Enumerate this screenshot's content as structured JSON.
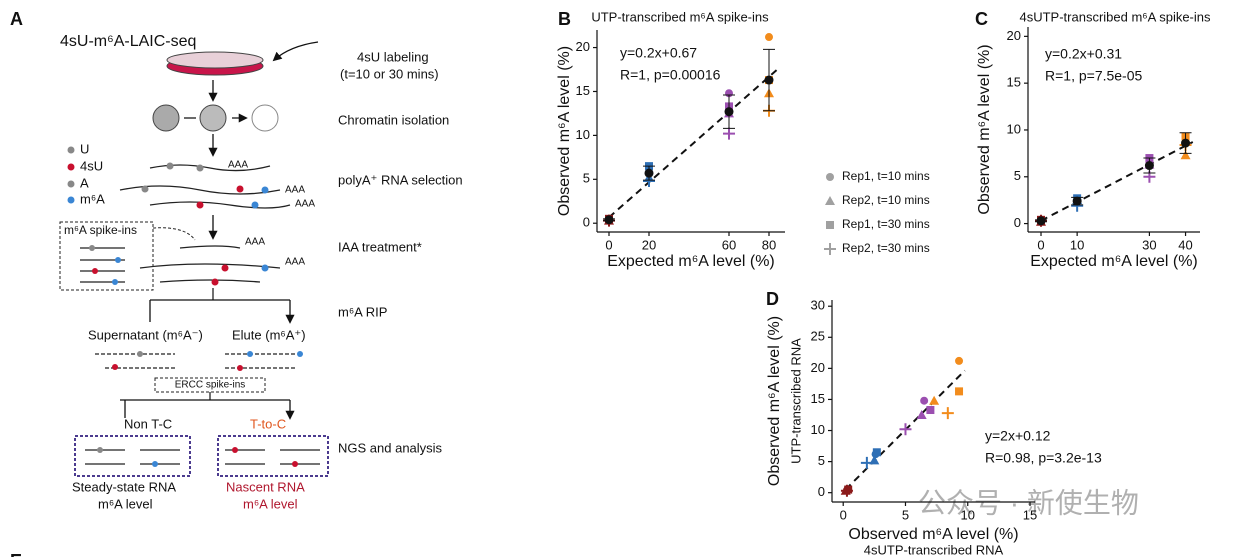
{
  "panel_a": {
    "label": "A",
    "title": "4sU-m⁶A-LAIC-seq",
    "labeling": [
      "4sU labeling",
      "(t=10 or 30 mins)"
    ],
    "steps": [
      "Chromatin isolation",
      "polyA⁺ RNA selection",
      "IAA treatment*",
      "m⁶A RIP",
      "NGS and analysis"
    ],
    "nucleotides": [
      "U",
      "4sU",
      "A",
      "m⁶A"
    ],
    "tail": "AAA",
    "spike_ins": "m⁶A spike-ins",
    "supernatant": "Supernatant (m⁶A⁻)",
    "elute": "Elute (m⁶A⁺)",
    "ercc": "ERCC spike-ins",
    "non_tc": "Non T-C",
    "t_to_c": "T-to-C",
    "steady": [
      "Steady-state RNA",
      "m⁶A level"
    ],
    "nascent": [
      "Nascent RNA",
      "m⁶A level"
    ]
  },
  "panel_e": {
    "label": "E"
  },
  "watermark": "公众号 · 新使生物",
  "chart_data": [
    {
      "type": "scatter",
      "label": "B",
      "title": "UTP-transcribed m⁶A spike-ins",
      "xlabel": [
        "Expected m⁶A level (%)"
      ],
      "ylabel": [
        "Observed m⁶A level (%)"
      ],
      "fit_label": [
        "y=0.2x+0.67",
        "R=1, p=0.00016"
      ],
      "fit": [
        0.2,
        0.67
      ],
      "x": [
        0,
        20,
        60,
        80
      ],
      "point_colors": [
        "#8b1a1a",
        "#2e6fb5",
        "#9b4fb0",
        "#f28c1c"
      ],
      "series": [
        {
          "name": "Rep1, t=10 mins",
          "marker": "circle",
          "values": [
            0.4,
            6.2,
            14.8,
            21.2
          ]
        },
        {
          "name": "Rep2, t=10 mins",
          "marker": "triangle",
          "values": [
            0.3,
            5.2,
            12.5,
            14.8
          ]
        },
        {
          "name": "Rep1, t=30 mins",
          "marker": "square",
          "values": [
            0.5,
            6.5,
            13.3,
            16.3
          ]
        },
        {
          "name": "Rep2, t=30 mins",
          "marker": "plus",
          "values": [
            0.3,
            4.8,
            10.2,
            12.8
          ]
        }
      ],
      "means": [
        0.4,
        5.7,
        12.7,
        16.3
      ],
      "errors": [
        0.1,
        0.8,
        1.9,
        3.5
      ],
      "legend": true,
      "legend_color": "#a0a0a0",
      "xlim": [
        -6,
        88
      ],
      "ylim": [
        -1,
        22
      ],
      "xticks": [
        0,
        20,
        60,
        80
      ],
      "yticks": [
        0,
        5,
        10,
        15,
        20
      ]
    },
    {
      "type": "scatter",
      "label": "C",
      "title": "4sUTP-transcribed m⁶A spike-ins",
      "xlabel": [
        "Expected m⁶A level (%)"
      ],
      "ylabel": [
        "Observed m⁶A level (%)"
      ],
      "fit_label": [
        "y=0.2x+0.31",
        "R=1, p=7.5e-05"
      ],
      "fit": [
        0.2,
        0.31
      ],
      "x": [
        0,
        10,
        30,
        40
      ],
      "point_colors": [
        "#8b1a1a",
        "#2e6fb5",
        "#9b4fb0",
        "#f28c1c"
      ],
      "series": [
        {
          "marker": "circle",
          "values": [
            0.3,
            2.6,
            6.5,
            9.3
          ]
        },
        {
          "marker": "triangle",
          "values": [
            0.2,
            2.5,
            6.3,
            7.3
          ]
        },
        {
          "marker": "square",
          "values": [
            0.4,
            2.7,
            7.0,
            9.3
          ]
        },
        {
          "marker": "plus",
          "values": [
            0.3,
            1.9,
            5.0,
            8.4
          ]
        }
      ],
      "means": [
        0.3,
        2.4,
        6.2,
        8.6
      ],
      "errors": [
        0.1,
        0.4,
        0.8,
        1.1
      ],
      "legend": false,
      "xlim": [
        -3.6,
        44
      ],
      "ylim": [
        -0.9,
        21
      ],
      "xticks": [
        0,
        10,
        30,
        40
      ],
      "yticks": [
        0,
        5,
        10,
        15,
        20
      ]
    },
    {
      "type": "scatter",
      "label": "D",
      "xlabel": [
        "Observed m⁶A level (%)",
        "4sUTP-transcribed RNA"
      ],
      "ylabel": [
        "Observed m⁶A level (%)",
        "UTP-transcribed RNA"
      ],
      "fit_label": [
        "y=2x+0.12",
        "R=0.98, p=3.2e-13"
      ],
      "fit": [
        2,
        0.12
      ],
      "point_colors": [
        "#8b1a1a",
        "#2e6fb5",
        "#9b4fb0",
        "#f28c1c"
      ],
      "series": [
        {
          "marker": "circle",
          "x": [
            0.3,
            2.6,
            6.5,
            9.3
          ],
          "values": [
            0.4,
            6.2,
            14.8,
            21.2
          ]
        },
        {
          "marker": "triangle",
          "x": [
            0.2,
            2.5,
            6.3,
            7.3
          ],
          "values": [
            0.3,
            5.2,
            12.5,
            14.8
          ]
        },
        {
          "marker": "square",
          "x": [
            0.4,
            2.7,
            7.0,
            9.3
          ],
          "values": [
            0.5,
            6.5,
            13.3,
            16.3
          ]
        },
        {
          "marker": "plus",
          "x": [
            0.3,
            1.9,
            5.0,
            8.4
          ],
          "values": [
            0.3,
            4.8,
            10.2,
            12.8
          ]
        }
      ],
      "legend": false,
      "xlim": [
        -0.9,
        15.4
      ],
      "ylim": [
        -1.5,
        31
      ],
      "xticks": [
        0,
        5,
        10,
        15
      ],
      "yticks": [
        0,
        5,
        10,
        15,
        20,
        25,
        30
      ]
    }
  ]
}
